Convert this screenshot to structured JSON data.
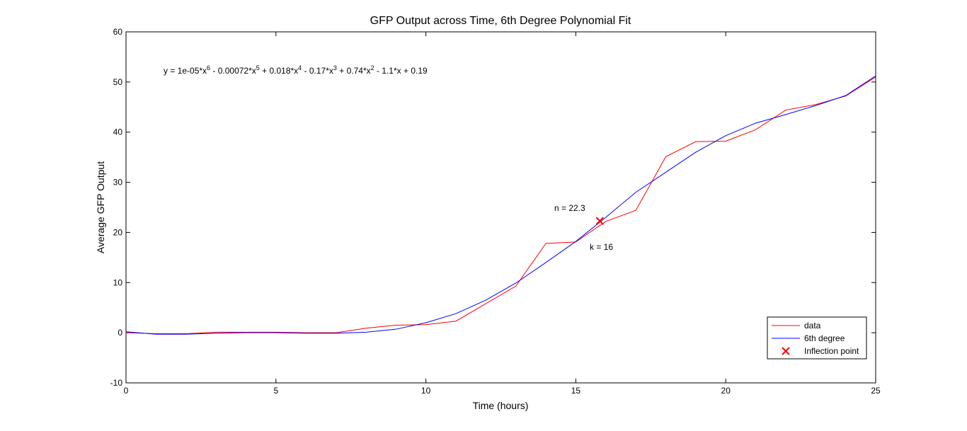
{
  "chart_data": {
    "type": "line",
    "title": "GFP Output across Time, 6th Degree Polynomial Fit",
    "xlabel": "Time (hours)",
    "ylabel": "Average GFP Output",
    "xlim": [
      0,
      25
    ],
    "ylim": [
      -10,
      60
    ],
    "xticks": [
      "0",
      "5",
      "10",
      "15",
      "20",
      "25"
    ],
    "yticks": [
      "-10",
      "0",
      "10",
      "20",
      "30",
      "40",
      "50",
      "60"
    ],
    "grid": false,
    "legend_position": "bottom-right",
    "equation": "y = 1e-05*x6 - 0.00072*x5 + 0.018*x4 - 0.17*x3 + 0.74*x2 - 1.1*x + 0.19",
    "equation_parts": [
      "y = 1e-05*x",
      "6",
      " - 0.00072*x",
      "5",
      " + 0.018*x",
      "4",
      " - 0.17*x",
      "3",
      " + 0.74*x",
      "2",
      " - 1.1*x + 0.19"
    ],
    "x": [
      0,
      1,
      2,
      3,
      4,
      5,
      6,
      7,
      8,
      9,
      10,
      11,
      12,
      13,
      14,
      15,
      16,
      17,
      18,
      19,
      20,
      21,
      22,
      23,
      24,
      25
    ],
    "series": [
      {
        "name": "data",
        "color": "#ff0000",
        "values": [
          0,
          -0.2,
          -0.2,
          0.1,
          0.1,
          0.1,
          0,
          0,
          0.9,
          1.5,
          1.6,
          2.3,
          5.8,
          9.3,
          17.8,
          18.1,
          22.2,
          24.4,
          35.1,
          38.1,
          38.2,
          40.5,
          44.4,
          45.5,
          47.2,
          51
        ]
      },
      {
        "name": "6th degree",
        "color": "#0000ff",
        "values": [
          0.19,
          -0.3,
          -0.3,
          -0.1,
          0,
          0,
          -0.1,
          -0.1,
          0.1,
          0.7,
          2,
          3.8,
          6.5,
          9.9,
          14,
          18.2,
          23,
          28,
          32,
          36,
          39.3,
          41.8,
          43.5,
          45.3,
          47.3,
          51.2
        ]
      }
    ],
    "inflection_point": {
      "name": "Inflection point",
      "x": 15.8,
      "y": 22.3,
      "color": "#ff0000"
    },
    "annotations": [
      "n = 22.3",
      "k = 16"
    ]
  }
}
